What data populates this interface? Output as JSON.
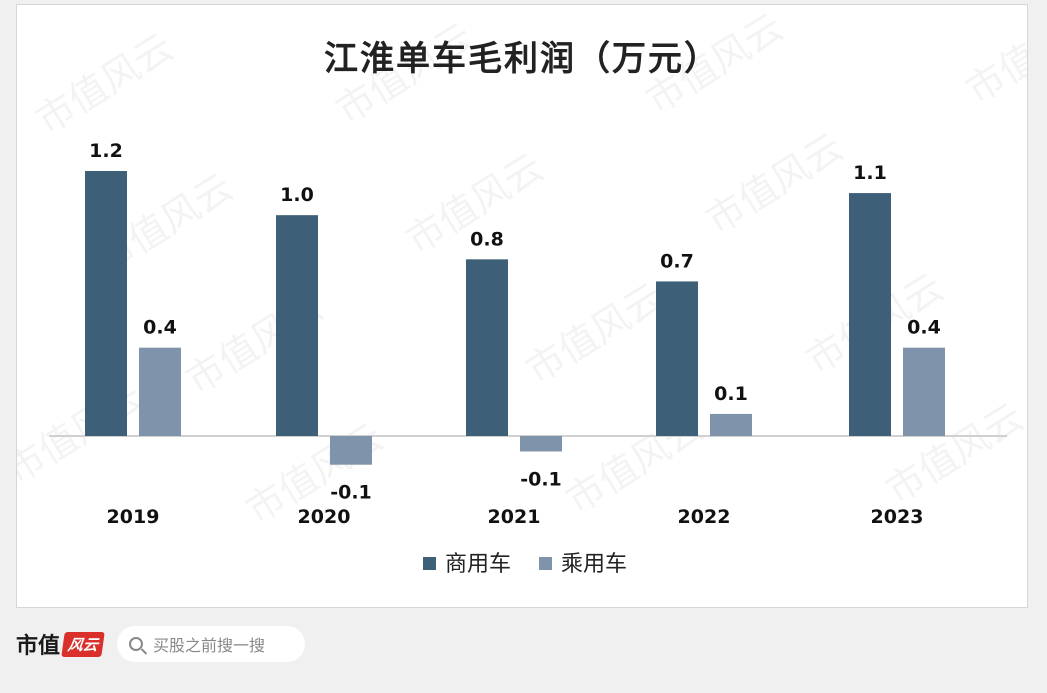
{
  "chart_data": {
    "type": "bar",
    "title": "江淮单车毛利润（万元）",
    "categories": [
      "2019",
      "2020",
      "2021",
      "2022",
      "2023"
    ],
    "series": [
      {
        "name": "商用车",
        "values": [
          1.2,
          1.0,
          0.8,
          0.7,
          1.1
        ],
        "labels": [
          "1.2",
          "1.0",
          "0.8",
          "0.7",
          "1.1"
        ],
        "color": "#3d5f78"
      },
      {
        "name": "乘用车",
        "values": [
          0.4,
          -0.13,
          -0.07,
          0.1,
          0.4
        ],
        "labels": [
          "0.4",
          "-0.1",
          "-0.1",
          "0.1",
          "0.4"
        ],
        "color": "#7f93aa"
      }
    ],
    "xlabel": "",
    "ylabel": "",
    "ylim": [
      -0.2,
      1.4
    ],
    "grid": false,
    "legend": "bottom"
  },
  "watermark": {
    "text": "市值风云"
  },
  "footer": {
    "logo_text": "市值",
    "logo_badge": "风云",
    "search_placeholder": "买股之前搜一搜"
  }
}
